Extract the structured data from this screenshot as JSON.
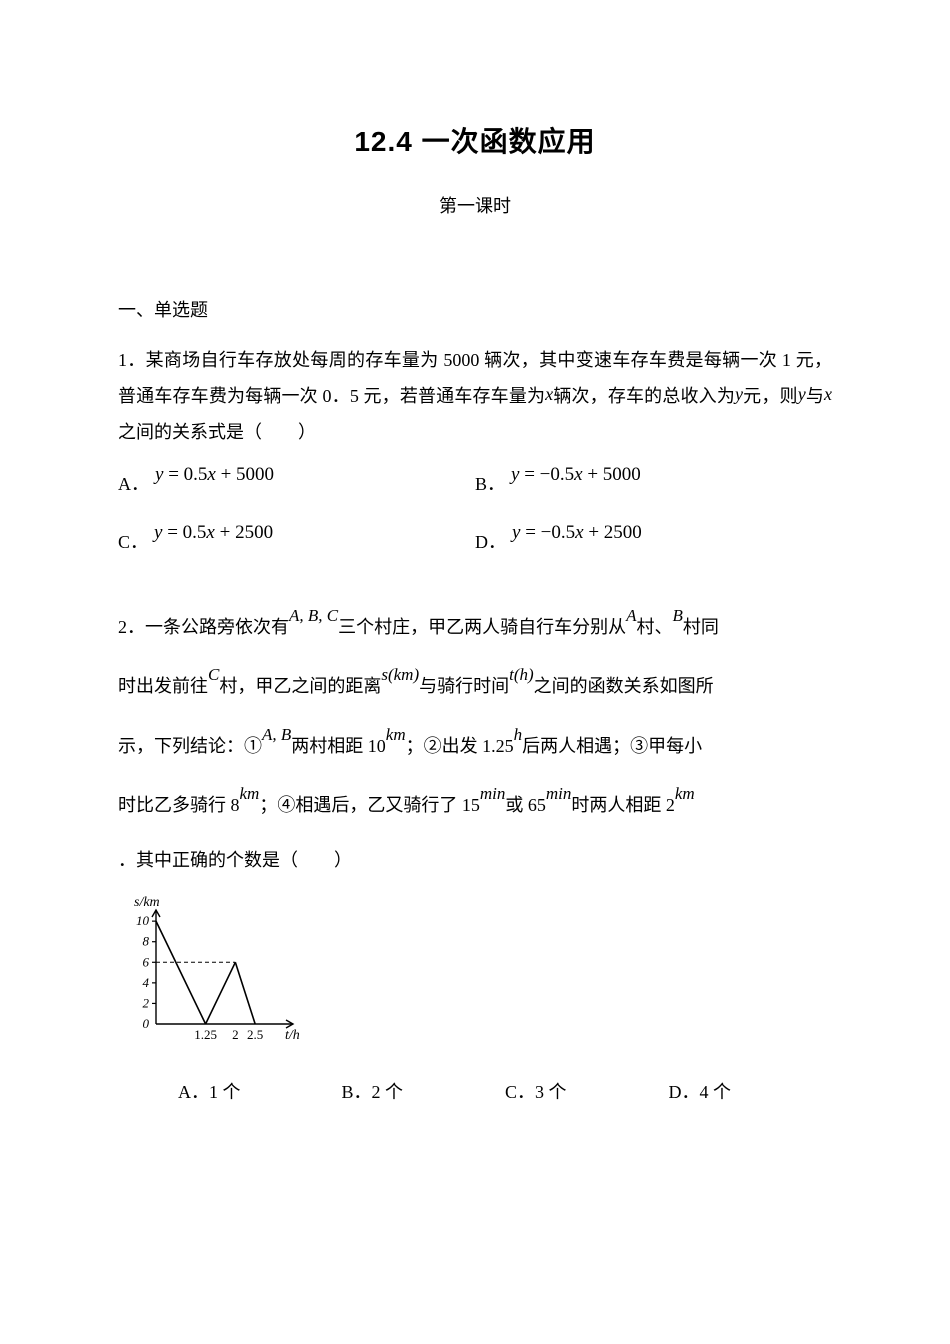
{
  "title": "12.4 一次函数应用",
  "subtitle": "第一课时",
  "section": "一、单选题",
  "q1": {
    "num": "1．",
    "text_a": "某商场自行车存放处每周的存车量为 5000 辆次，其中变速车存车费是每辆一次 1 元，普通车存车费为每辆一次 0．5 元，若普通车存车量为",
    "var1": "x",
    "text_b": "辆次，存车的总收入为",
    "var2": "y",
    "text_c": "元，则",
    "var3": "y",
    "text_d": "与",
    "var4": "x",
    "text_e": "之间的关系式是（　　）",
    "options": {
      "A": {
        "label": "A．",
        "formula": "y = 0.5x + 5000"
      },
      "B": {
        "label": "B．",
        "formula": "y = − 0.5x + 5000"
      },
      "C": {
        "label": "C．",
        "formula": "y = 0.5x + 2500"
      },
      "D": {
        "label": "D．",
        "formula": "y = − 0.5x + 2500"
      }
    }
  },
  "q2": {
    "num": "2．",
    "t1": "一条公路旁依次有",
    "sup1": "A, B, C",
    "t2": "三个村庄，甲乙两人骑自行车分别从",
    "sup2": "A",
    "t3": "村、",
    "sup3": "B",
    "t4": "村同",
    "t5": "时出发前往",
    "sup4": "C",
    "t6": "村，甲乙之间的距离",
    "sup5": "s(km)",
    "t7": "与骑行时间",
    "sup6": "t(h)",
    "t8": "之间的函数关系如图所",
    "t9": "示，下列结论：①",
    "sup7": "A, B",
    "t10": "两村相距 10",
    "sup8": "km",
    "t11": "；②出发 1.25",
    "sup9": "h",
    "t12": "后两人相遇；③甲每小",
    "t13": "时比乙多骑行 8",
    "sup10": "km",
    "t14": "；④相遇后，乙又骑行了 15",
    "sup11": "min",
    "t15": "或 65",
    "sup12": "min",
    "t16": "时两人相距 2",
    "sup13": "km",
    "t17": "．其中正确的个数是（　　）",
    "options": {
      "A": "A．1 个",
      "B": "B．2 个",
      "C": "C．3 个",
      "D": "D．4 个"
    }
  },
  "chart": {
    "axis_color": "#000000",
    "line_color": "#000000",
    "dash_color": "#000000",
    "bg": "#ffffff",
    "y_label": "s/km",
    "x_label": "t/h",
    "y_label_fs": 14,
    "tick_fs": 13,
    "y_ticks": [
      0,
      2,
      4,
      6,
      8,
      10
    ],
    "x_ticks": [
      1.25,
      2,
      2.5
    ],
    "ylim": [
      0,
      10.5
    ],
    "xlim": [
      0,
      3.0
    ],
    "series": [
      {
        "points": [
          [
            0,
            10
          ],
          [
            1.25,
            0
          ]
        ]
      },
      {
        "points": [
          [
            1.25,
            0
          ],
          [
            2,
            6
          ]
        ]
      },
      {
        "points": [
          [
            2,
            6
          ],
          [
            2.5,
            0
          ]
        ]
      }
    ],
    "dash": {
      "from": [
        0,
        6
      ],
      "to": [
        2,
        6
      ]
    }
  }
}
